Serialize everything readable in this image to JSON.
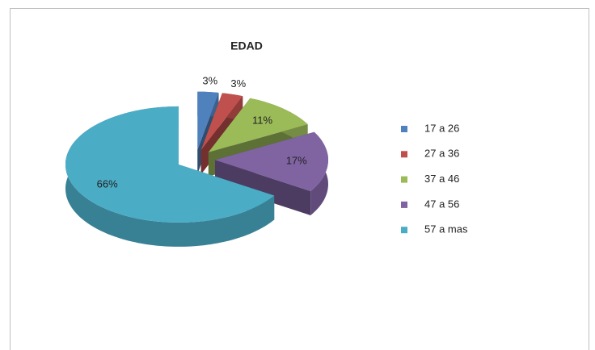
{
  "chart_data": {
    "type": "pie",
    "title": "EDAD",
    "categories": [
      "17 a 26",
      "27 a 36",
      "37 a 46",
      "47 a 56",
      "57 a mas"
    ],
    "values": [
      3,
      3,
      11,
      17,
      66
    ],
    "value_labels": [
      "3%",
      "3%",
      "11%",
      "17%",
      "66%"
    ],
    "colors": [
      "#4f81bd",
      "#c0504d",
      "#9bbb59",
      "#8064a2",
      "#4bacc6"
    ],
    "legend": "right"
  }
}
